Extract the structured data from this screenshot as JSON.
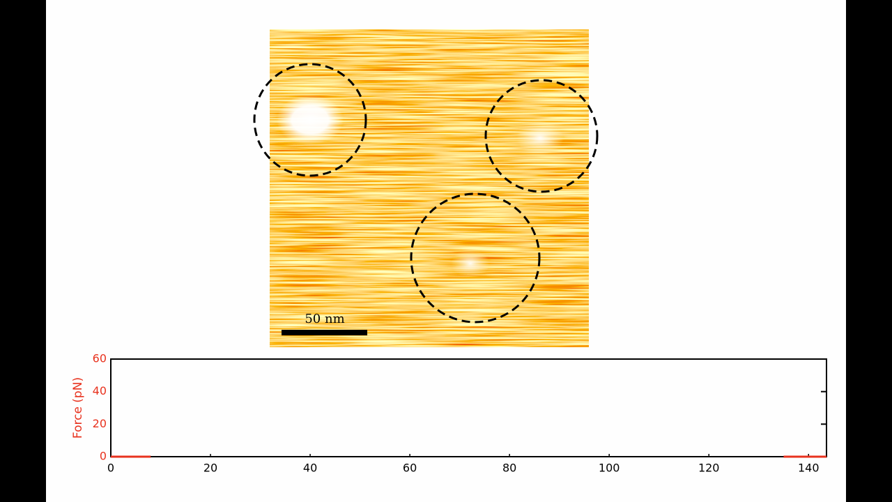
{
  "image": {
    "scale_bar_label": "50 nm"
  },
  "chart_data": {
    "type": "line",
    "y_label": "Force (pN)",
    "x": [
      0,
      8,
      71.5,
      135,
      143.6
    ],
    "series": [
      {
        "name": "Force",
        "color": "#e8321e",
        "values": [
          0,
          0,
          null,
          0,
          0
        ]
      }
    ],
    "xlim": [
      0,
      143.6
    ],
    "ylim": [
      0,
      60
    ],
    "xticks": [
      0,
      20,
      40,
      60,
      80,
      100,
      120,
      140
    ],
    "yticks": [
      0,
      20,
      40,
      60
    ],
    "axis_label_color": "#e8321e"
  }
}
